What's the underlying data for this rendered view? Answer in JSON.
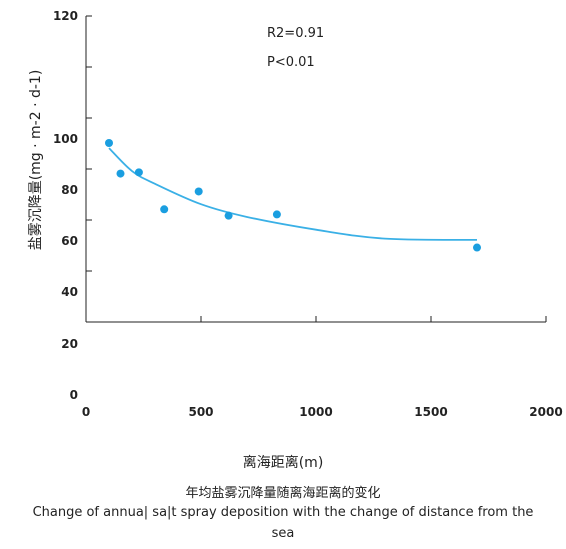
{
  "chart_data": {
    "type": "scatter",
    "xlabel": "离海距离(m)",
    "ylabel": "盐雾沉降量(mg · m-2 · d-1)",
    "x_ticks": [
      "0",
      "500",
      "1000",
      "1500",
      "2000"
    ],
    "y_ticks": [
      "0",
      "20",
      "40",
      "60",
      "80",
      "100",
      "120"
    ],
    "xlim": [
      0,
      2000
    ],
    "points": [
      {
        "x": 100,
        "y": 100
      },
      {
        "x": 150,
        "y": 88
      },
      {
        "x": 230,
        "y": 88.5
      },
      {
        "x": 340,
        "y": 74
      },
      {
        "x": 490,
        "y": 81
      },
      {
        "x": 620,
        "y": 71.5
      },
      {
        "x": 830,
        "y": 72
      },
      {
        "x": 1700,
        "y": 59
      }
    ],
    "trend_line": [
      {
        "x": 100,
        "y": 98
      },
      {
        "x": 200,
        "y": 89
      },
      {
        "x": 300,
        "y": 84
      },
      {
        "x": 500,
        "y": 76
      },
      {
        "x": 700,
        "y": 71
      },
      {
        "x": 1000,
        "y": 66
      },
      {
        "x": 1300,
        "y": 62.5
      },
      {
        "x": 1700,
        "y": 62
      }
    ],
    "annotations": [
      "R2=0.91",
      "P<0.01"
    ],
    "point_color": "#1a9ee0",
    "line_color": "#3ab0e6",
    "grid": false
  },
  "caption_cn": "年均盐雾沉降量随离海距离的变化",
  "caption_en": "Change of annua| sa|t spray deposition with the change of distance from the sea"
}
